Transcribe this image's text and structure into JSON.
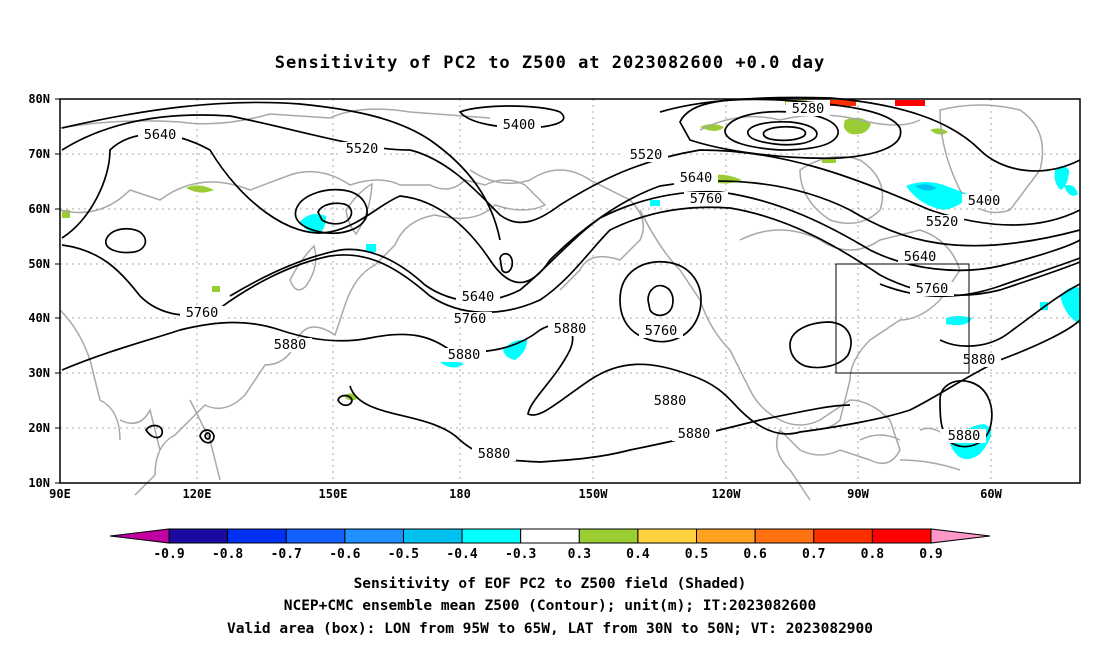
{
  "title": "Sensitivity of PC2 to Z500 at 2023082600 +0.0 day",
  "map": {
    "lat_labels": [
      "80N",
      "70N",
      "60N",
      "50N",
      "40N",
      "30N",
      "20N",
      "10N"
    ],
    "lon_labels": [
      "90E",
      "120E",
      "150E",
      "180",
      "150W",
      "120W",
      "90W",
      "60W"
    ],
    "extent": {
      "lon_west": "90E",
      "lon_east": "40W",
      "lat_south": "10N",
      "lat_north": "80N"
    },
    "contour_unit": "m",
    "contour_labels": [
      "5640",
      "5520",
      "5400",
      "5280",
      "5520",
      "5640",
      "5760",
      "5400",
      "5520",
      "5640",
      "5760",
      "5760",
      "5640",
      "5760",
      "5880",
      "5880",
      "5880",
      "5760",
      "5880",
      "5880",
      "5880",
      "5880",
      "5880"
    ],
    "valid_box": {
      "lon": [
        "95W",
        "65W"
      ],
      "lat": [
        "30N",
        "50N"
      ]
    },
    "colors": {
      "contour": "#000000",
      "coast": "#a8a8a8",
      "grid": "#a8a8a8"
    }
  },
  "colorbar": {
    "labels": [
      "-0.9",
      "-0.8",
      "-0.7",
      "-0.6",
      "-0.5",
      "-0.4",
      "-0.3",
      "0.3",
      "0.4",
      "0.5",
      "0.6",
      "0.7",
      "0.8",
      "0.9"
    ],
    "colors": [
      "#c000a0",
      "#1a0aa0",
      "#0030f0",
      "#1060ff",
      "#1e90ff",
      "#00c0f0",
      "#00ffff",
      "#ffffff",
      "#9acd32",
      "#ffd040",
      "#ffa020",
      "#ff7010",
      "#ff3000",
      "#ff0000",
      "#ff98c8"
    ]
  },
  "footer": [
    "Sensitivity of EOF PC2 to Z500 field (Shaded)",
    "NCEP+CMC ensemble mean Z500 (Contour); unit(m); IT:2023082600",
    "Valid area (box): LON from 95W to 65W, LAT from 30N to 50N; VT: 2023082900"
  ]
}
